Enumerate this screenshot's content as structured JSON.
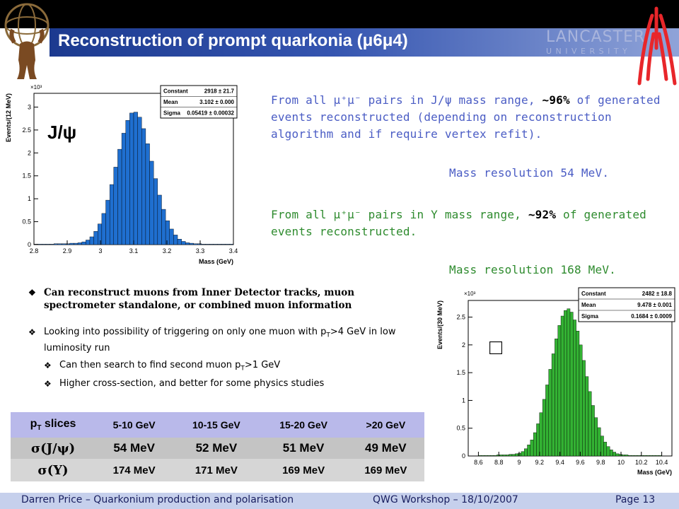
{
  "header": {
    "title": "Reconstruction of prompt quarkonia (μ6μ4)",
    "logo": "LANCASTER",
    "logo_sub": "U N I V E R S I T Y"
  },
  "text": {
    "jpsi": {
      "before": "From all μ⁺μ⁻ pairs in J/ψ mass range, ",
      "bold": "~96%",
      "after": " of generated events reconstructed (depending on reconstruction algorithm and if require vertex refit).",
      "resolution": "Mass resolution 54 MeV."
    },
    "upsilon": {
      "before": "From all μ⁺μ⁻ pairs in Υ mass range, ",
      "bold": "~92%",
      "after": " of generated events reconstructed.",
      "resolution": "Mass resolution 168 MeV."
    }
  },
  "bullets": [
    {
      "parts": [
        "Can reconstruct muons from Inner Detector tracks, muon spectrometer standalone, or combined muon information"
      ]
    },
    {
      "parts": [
        "Looking into possibility of triggering on only one muon with p",
        "T",
        ">4 GeV in low luminosity run"
      ],
      "sub": [
        {
          "parts": [
            "Can then search to find second muon p",
            "T",
            ">1 GeV"
          ]
        },
        {
          "parts": [
            "Higher cross-section, and better for some physics studies"
          ]
        }
      ]
    }
  ],
  "table": {
    "header": [
      [
        "p",
        "T",
        " slices"
      ],
      "5-10 GeV",
      "10-15 GeV",
      "15-20 GeV",
      ">20 GeV"
    ],
    "rows": [
      [
        "σ(J/ψ)",
        "54 MeV",
        "52 MeV",
        "51 MeV",
        "49 MeV"
      ],
      [
        "σ(Υ)",
        "174 MeV",
        "171 MeV",
        "169 MeV",
        "169 MeV"
      ]
    ]
  },
  "footer": {
    "left": "Darren Price – Quarkonium production and polarisation",
    "center": "QWG Workshop – 18/10/2007",
    "right": "Page 13"
  },
  "chart_data": [
    {
      "type": "histogram",
      "annotation": "J/ψ",
      "y_multiplier": "×10³",
      "ylabel": "Events/(12 MeV)",
      "xlabel": "Mass (GeV)",
      "color": "#1f6fd0",
      "xlim": [
        2.8,
        3.4
      ],
      "ylim": [
        0,
        3.3
      ],
      "xticks": [
        2.8,
        2.9,
        3,
        3.1,
        3.2,
        3.3,
        3.4
      ],
      "yticks": [
        0,
        0.5,
        1,
        1.5,
        2,
        2.5,
        3
      ],
      "bins": [
        2.8,
        2.812,
        2.824,
        2.836,
        2.848,
        2.86,
        2.872,
        2.884,
        2.896,
        2.908,
        2.92,
        2.932,
        2.944,
        2.956,
        2.968,
        2.98,
        2.992,
        3.004,
        3.016,
        3.028,
        3.04,
        3.052,
        3.064,
        3.076,
        3.088,
        3.1,
        3.112,
        3.124,
        3.136,
        3.148,
        3.16,
        3.172,
        3.184,
        3.196,
        3.208,
        3.22,
        3.232,
        3.244,
        3.256,
        3.268,
        3.28,
        3.292,
        3.304,
        3.316,
        3.328,
        3.34,
        3.352,
        3.364,
        3.376,
        3.388,
        3.4
      ],
      "values": [
        0.01,
        0.01,
        0.01,
        0.01,
        0.01,
        0.02,
        0.02,
        0.02,
        0.02,
        0.03,
        0.03,
        0.04,
        0.06,
        0.1,
        0.17,
        0.29,
        0.45,
        0.68,
        0.97,
        1.31,
        1.69,
        2.08,
        2.43,
        2.71,
        2.87,
        2.89,
        2.78,
        2.53,
        2.2,
        1.82,
        1.44,
        1.08,
        0.77,
        0.52,
        0.34,
        0.21,
        0.12,
        0.07,
        0.04,
        0.03,
        0.02,
        0.02,
        0.01,
        0.01,
        0.01,
        0.01,
        0.01,
        0.01,
        0.01,
        0.01
      ],
      "stats": [
        {
          "name": "Constant",
          "value": "2918 ± 21.7"
        },
        {
          "name": "Mean",
          "value": "3.102 ± 0.000"
        },
        {
          "name": "Sigma",
          "value": "0.05419 ± 0.00032"
        }
      ]
    },
    {
      "type": "histogram",
      "annotation": "□",
      "y_multiplier": "×10³",
      "ylabel": "Events/(30 MeV)",
      "xlabel": "Mass (GeV)",
      "color": "#33b233",
      "xlim": [
        8.5,
        10.5
      ],
      "ylim": [
        0,
        2.8
      ],
      "xticks": [
        8.6,
        8.8,
        9,
        9.2,
        9.4,
        9.6,
        9.8,
        10,
        10.2,
        10.4
      ],
      "yticks": [
        0,
        0.5,
        1,
        1.5,
        2,
        2.5
      ],
      "bins": [
        8.6,
        8.63,
        8.66,
        8.69,
        8.72,
        8.75,
        8.78,
        8.81,
        8.84,
        8.87,
        8.9,
        8.93,
        8.96,
        8.99,
        9.02,
        9.05,
        9.08,
        9.11,
        9.14,
        9.17,
        9.2,
        9.23,
        9.26,
        9.29,
        9.32,
        9.35,
        9.38,
        9.41,
        9.44,
        9.47,
        9.5,
        9.53,
        9.56,
        9.59,
        9.62,
        9.65,
        9.68,
        9.71,
        9.74,
        9.77,
        9.8,
        9.83,
        9.86,
        9.89,
        9.92,
        9.95,
        9.98,
        10.01,
        10.04,
        10.07,
        10.1,
        10.13,
        10.16,
        10.19,
        10.22,
        10.25,
        10.28,
        10.31,
        10.34,
        10.37,
        10.4
      ],
      "values": [
        0.01,
        0.01,
        0.01,
        0.01,
        0.01,
        0.01,
        0.02,
        0.02,
        0.02,
        0.02,
        0.03,
        0.03,
        0.04,
        0.05,
        0.08,
        0.13,
        0.2,
        0.29,
        0.42,
        0.58,
        0.78,
        1.02,
        1.28,
        1.56,
        1.84,
        2.11,
        2.35,
        2.52,
        2.62,
        2.65,
        2.59,
        2.45,
        2.25,
        2.0,
        1.72,
        1.43,
        1.16,
        0.91,
        0.69,
        0.51,
        0.36,
        0.25,
        0.17,
        0.11,
        0.07,
        0.04,
        0.03,
        0.02,
        0.02,
        0.01,
        0.01,
        0.01,
        0.01,
        0.01,
        0.01,
        0.01,
        0.01,
        0.01,
        0.01,
        0.01
      ],
      "stats": [
        {
          "name": "Constant",
          "value": "2482 ± 18.8"
        },
        {
          "name": "Mean",
          "value": "9.478 ± 0.001"
        },
        {
          "name": "Sigma",
          "value": "0.1684 ± 0.0009"
        }
      ]
    }
  ]
}
